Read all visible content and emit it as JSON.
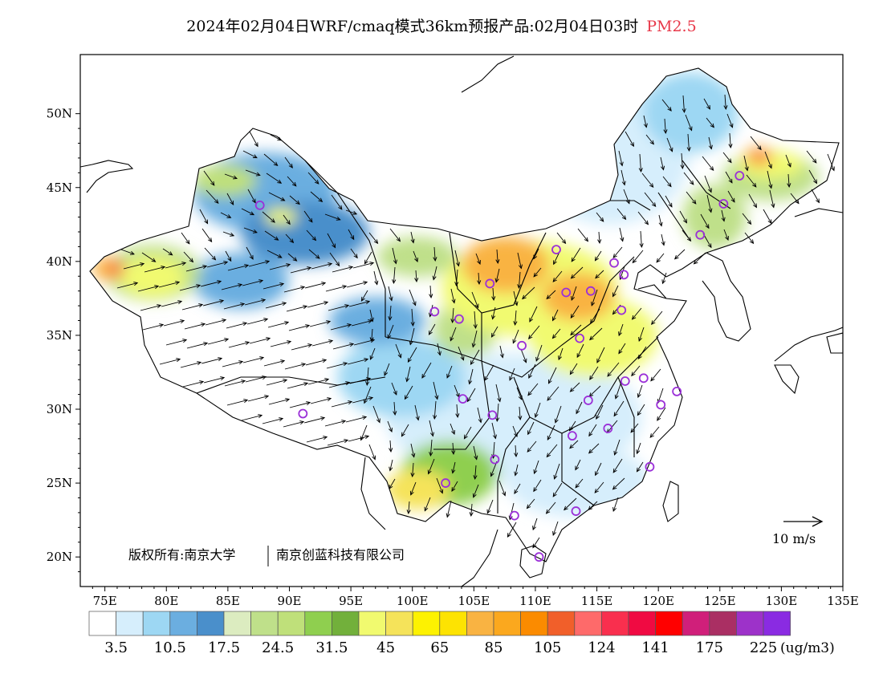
{
  "title": {
    "main": "2024年02月04日WRF/cmaq模式36km预报产品:02月04日03时",
    "pollutant": "PM2.5"
  },
  "map": {
    "lon_range": [
      73,
      135
    ],
    "lat_range": [
      18,
      54
    ],
    "lon_ticks": [
      "75E",
      "80E",
      "85E",
      "90E",
      "95E",
      "100E",
      "105E",
      "110E",
      "115E",
      "120E",
      "125E",
      "130E",
      "135E"
    ],
    "lat_ticks": [
      "20N",
      "25N",
      "30N",
      "35N",
      "40N",
      "45N",
      "50N"
    ],
    "lon_tick_values": [
      75,
      80,
      85,
      90,
      95,
      100,
      105,
      110,
      115,
      120,
      125,
      130,
      135
    ],
    "lat_tick_values": [
      20,
      25,
      30,
      35,
      40,
      45,
      50
    ],
    "copyright_left": "版权所有:南京大学",
    "copyright_right": "南京创蓝科技有限公司",
    "wind_reference_label": "10 m/s",
    "colors": {
      "land_clean": "#ffffff",
      "wind_vector": "#000000",
      "station_marker": "#9b30d8",
      "coast": "#000000"
    }
  },
  "legend": {
    "colors": [
      "#ffffff",
      "#d6eefc",
      "#9dd7f3",
      "#6baee0",
      "#4a8fcb",
      "#dcecc0",
      "#bfe08a",
      "#bfe07a",
      "#8fcf4f",
      "#72b03b",
      "#f1fa6f",
      "#f5e35a",
      "#fdf201",
      "#fde302",
      "#f9b342",
      "#fba81e",
      "#fb8b00",
      "#f15f2a",
      "#fe6a6a",
      "#f92f4e",
      "#f00a42",
      "#ff0000",
      "#d01f7a",
      "#aa2f63",
      "#9d32c9",
      "#8a2be2"
    ],
    "labels": [
      "3.5",
      "10.5",
      "17.5",
      "24.5",
      "31.5",
      "45",
      "65",
      "85",
      "105",
      "124",
      "141",
      "175",
      "225"
    ],
    "unit": "(ug/m3)"
  },
  "stations": [
    [
      87.6,
      43.8
    ],
    [
      91.1,
      29.7
    ],
    [
      101.8,
      36.6
    ],
    [
      103.8,
      36.1
    ],
    [
      106.3,
      38.5
    ],
    [
      111.7,
      40.8
    ],
    [
      112.5,
      37.9
    ],
    [
      114.5,
      38.0
    ],
    [
      116.4,
      39.9
    ],
    [
      117.2,
      39.1
    ],
    [
      113.6,
      34.8
    ],
    [
      117.0,
      36.7
    ],
    [
      108.9,
      34.3
    ],
    [
      104.1,
      30.7
    ],
    [
      106.5,
      29.6
    ],
    [
      106.7,
      26.6
    ],
    [
      102.7,
      25.0
    ],
    [
      108.3,
      22.8
    ],
    [
      110.3,
      20.0
    ],
    [
      113.3,
      23.1
    ],
    [
      113.0,
      28.2
    ],
    [
      115.9,
      28.7
    ],
    [
      114.3,
      30.6
    ],
    [
      117.3,
      31.9
    ],
    [
      118.8,
      32.1
    ],
    [
      120.2,
      30.3
    ],
    [
      121.5,
      31.2
    ],
    [
      119.3,
      26.1
    ],
    [
      123.4,
      41.8
    ],
    [
      125.3,
      43.9
    ],
    [
      126.6,
      45.8
    ]
  ]
}
